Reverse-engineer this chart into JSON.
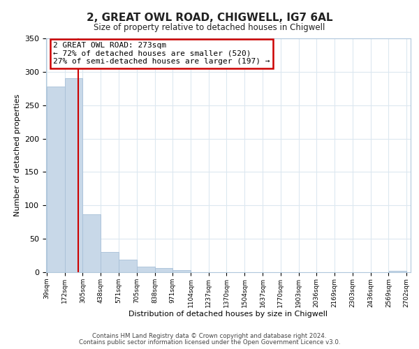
{
  "title": "2, GREAT OWL ROAD, CHIGWELL, IG7 6AL",
  "subtitle": "Size of property relative to detached houses in Chigwell",
  "xlabel": "Distribution of detached houses by size in Chigwell",
  "ylabel": "Number of detached properties",
  "bar_edges": [
    39,
    172,
    305,
    438,
    571,
    705,
    838,
    971,
    1104,
    1237,
    1370,
    1504,
    1637,
    1770,
    1903,
    2036,
    2169,
    2303,
    2436,
    2569,
    2702
  ],
  "bar_heights": [
    278,
    290,
    87,
    30,
    19,
    8,
    6,
    3,
    0,
    0,
    0,
    0,
    0,
    0,
    0,
    0,
    0,
    0,
    0,
    2
  ],
  "bar_color": "#c8d8e8",
  "bar_edgecolor": "#a8c0d8",
  "vline_x": 273,
  "vline_color": "#cc0000",
  "ylim": [
    0,
    350
  ],
  "yticks": [
    0,
    50,
    100,
    150,
    200,
    250,
    300,
    350
  ],
  "xtick_labels": [
    "39sqm",
    "172sqm",
    "305sqm",
    "438sqm",
    "571sqm",
    "705sqm",
    "838sqm",
    "971sqm",
    "1104sqm",
    "1237sqm",
    "1370sqm",
    "1504sqm",
    "1637sqm",
    "1770sqm",
    "1903sqm",
    "2036sqm",
    "2169sqm",
    "2303sqm",
    "2436sqm",
    "2569sqm",
    "2702sqm"
  ],
  "annotation_title": "2 GREAT OWL ROAD: 273sqm",
  "annotation_line1": "← 72% of detached houses are smaller (520)",
  "annotation_line2": "27% of semi-detached houses are larger (197) →",
  "annotation_box_color": "#ffffff",
  "annotation_box_edgecolor": "#cc0000",
  "footer_line1": "Contains HM Land Registry data © Crown copyright and database right 2024.",
  "footer_line2": "Contains public sector information licensed under the Open Government Licence v3.0.",
  "background_color": "#ffffff",
  "grid_color": "#dce8f0"
}
